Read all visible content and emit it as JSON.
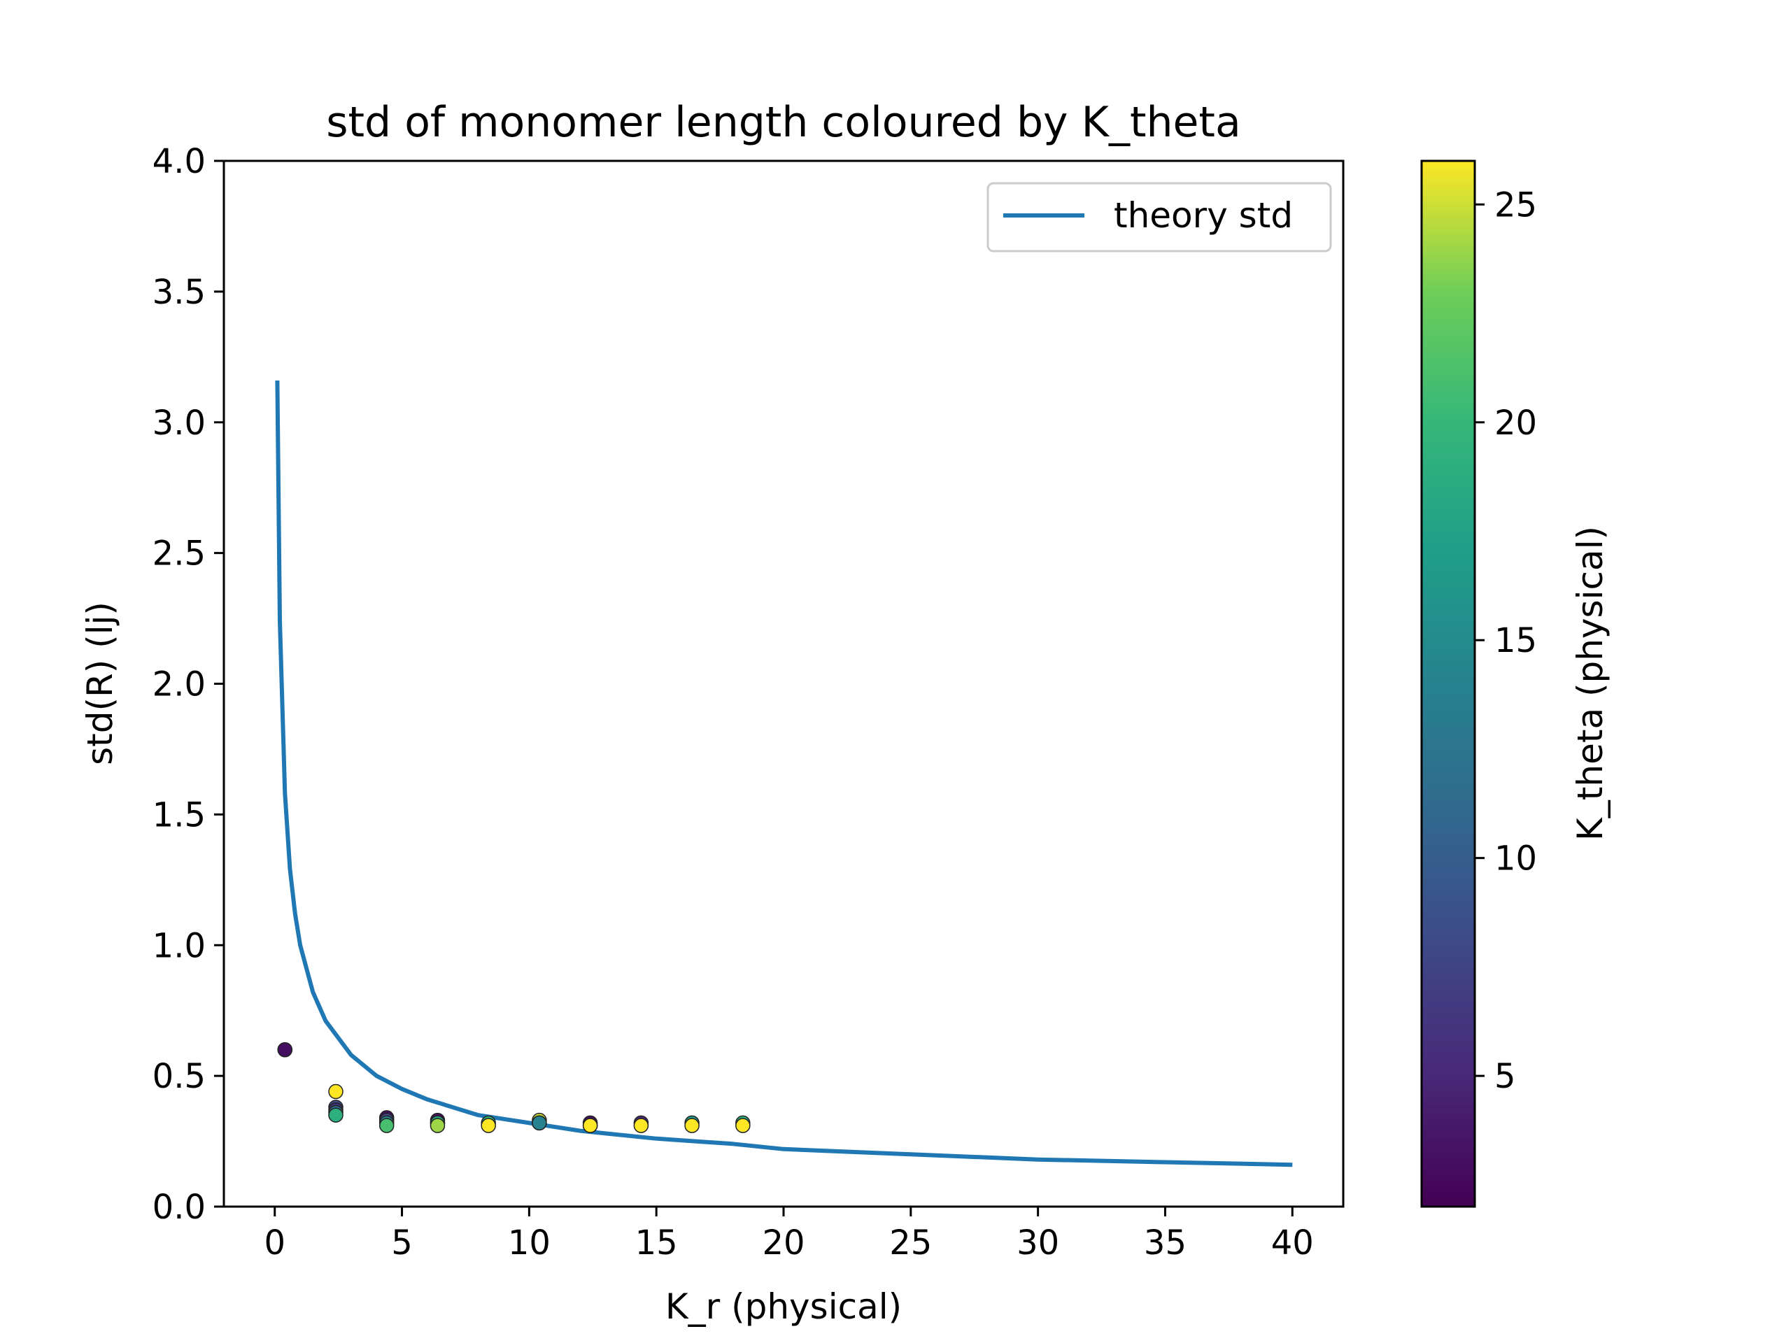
{
  "chart_data": {
    "type": "scatter",
    "title": "std of monomer length coloured by K_theta",
    "xlabel": "K_r (physical)",
    "ylabel": "std(R) (lj)",
    "xlim": [
      -2.0,
      42.0
    ],
    "ylim": [
      0.0,
      4.0
    ],
    "xticks": [
      "0",
      "5",
      "10",
      "15",
      "20",
      "25",
      "30",
      "35",
      "40"
    ],
    "yticks": [
      "0.0",
      "0.5",
      "1.0",
      "1.5",
      "2.0",
      "2.5",
      "3.0",
      "3.5",
      "4.0"
    ],
    "grid": false,
    "legend": {
      "position": "top-right",
      "entries": [
        "theory std"
      ]
    },
    "colorbar": {
      "label": "K_theta (physical)",
      "range": [
        2.0,
        26.0
      ],
      "ticks": [
        "5",
        "10",
        "15",
        "20",
        "25"
      ],
      "colormap": "viridis"
    },
    "series": [
      {
        "name": "theory std",
        "kind": "line",
        "color": "#1f77b4",
        "x": [
          0.1,
          0.2,
          0.4,
          0.6,
          0.8,
          1.0,
          1.5,
          2.0,
          3.0,
          4.0,
          5.0,
          6.0,
          8.0,
          10.0,
          12.0,
          15.0,
          18.0,
          20.0,
          25.0,
          30.0,
          35.0,
          40.0
        ],
        "y": [
          3.16,
          2.24,
          1.58,
          1.29,
          1.12,
          1.0,
          0.82,
          0.71,
          0.58,
          0.5,
          0.45,
          0.41,
          0.35,
          0.32,
          0.29,
          0.26,
          0.24,
          0.22,
          0.2,
          0.18,
          0.17,
          0.16
        ]
      },
      {
        "name": "",
        "kind": "scatter",
        "points": [
          {
            "x": 0.4,
            "y": 0.6,
            "k": 2
          },
          {
            "x": 0.4,
            "y": 0.6,
            "k": 3
          },
          {
            "x": 2.4,
            "y": 0.44,
            "k": 26
          },
          {
            "x": 2.4,
            "y": 0.38,
            "k": 8
          },
          {
            "x": 2.4,
            "y": 0.37,
            "k": 6
          },
          {
            "x": 2.4,
            "y": 0.36,
            "k": 11
          },
          {
            "x": 2.4,
            "y": 0.35,
            "k": 19
          },
          {
            "x": 4.4,
            "y": 0.34,
            "k": 3
          },
          {
            "x": 4.4,
            "y": 0.33,
            "k": 8
          },
          {
            "x": 4.4,
            "y": 0.32,
            "k": 14
          },
          {
            "x": 4.4,
            "y": 0.31,
            "k": 21
          },
          {
            "x": 6.4,
            "y": 0.33,
            "k": 3
          },
          {
            "x": 6.4,
            "y": 0.32,
            "k": 10
          },
          {
            "x": 6.4,
            "y": 0.32,
            "k": 18
          },
          {
            "x": 6.4,
            "y": 0.31,
            "k": 24
          },
          {
            "x": 8.4,
            "y": 0.32,
            "k": 19
          },
          {
            "x": 8.4,
            "y": 0.31,
            "k": 26
          },
          {
            "x": 10.4,
            "y": 0.33,
            "k": 25
          },
          {
            "x": 10.4,
            "y": 0.32,
            "k": 20
          },
          {
            "x": 10.4,
            "y": 0.32,
            "k": 14
          },
          {
            "x": 12.4,
            "y": 0.32,
            "k": 3
          },
          {
            "x": 12.4,
            "y": 0.31,
            "k": 22
          },
          {
            "x": 12.4,
            "y": 0.31,
            "k": 26
          },
          {
            "x": 14.4,
            "y": 0.32,
            "k": 5
          },
          {
            "x": 14.4,
            "y": 0.31,
            "k": 26
          },
          {
            "x": 16.4,
            "y": 0.32,
            "k": 17
          },
          {
            "x": 16.4,
            "y": 0.31,
            "k": 26
          },
          {
            "x": 18.4,
            "y": 0.32,
            "k": 19
          },
          {
            "x": 18.4,
            "y": 0.31,
            "k": 26
          }
        ]
      }
    ]
  }
}
